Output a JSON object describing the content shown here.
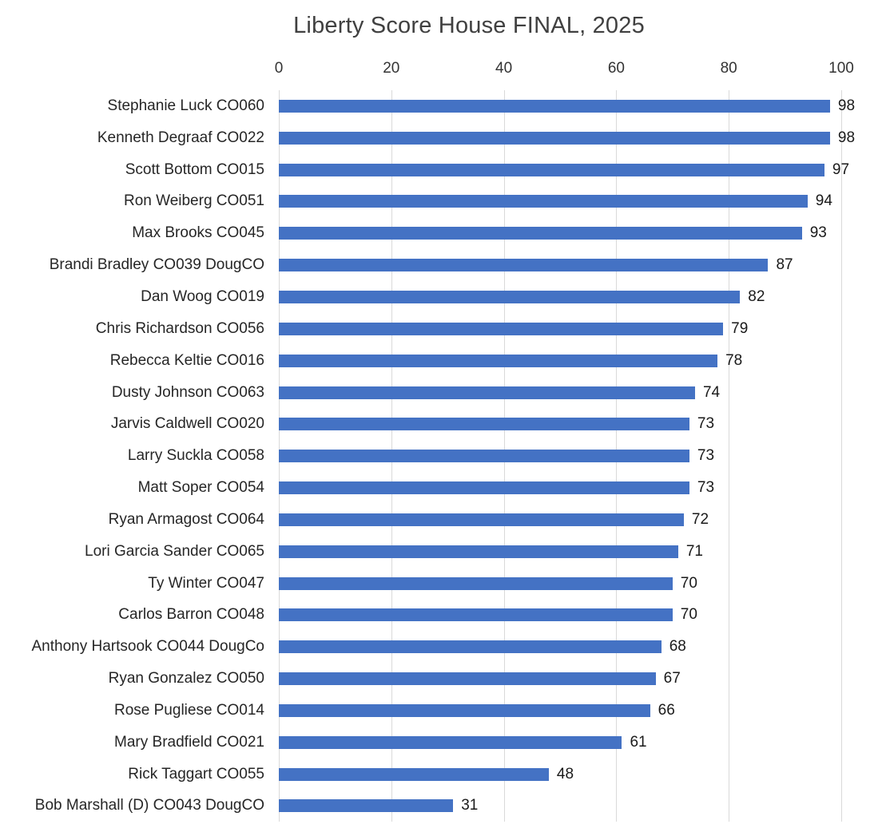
{
  "chart_data": {
    "type": "bar",
    "orientation": "horizontal",
    "title": "Liberty Score House FINAL, 2025",
    "categories": [
      "Stephanie Luck CO060",
      "Kenneth Degraaf CO022",
      "Scott Bottom CO015",
      "Ron Weiberg CO051",
      "Max Brooks CO045",
      "Brandi Bradley CO039 DougCO",
      "Dan Woog CO019",
      "Chris Richardson CO056",
      "Rebecca Keltie CO016",
      "Dusty Johnson CO063",
      "Jarvis Caldwell CO020",
      "Larry Suckla CO058",
      "Matt Soper CO054",
      "Ryan Armagost CO064",
      "Lori Garcia Sander CO065",
      "Ty Winter CO047",
      "Carlos Barron CO048",
      "Anthony Hartsook CO044 DougCo",
      "Ryan Gonzalez CO050",
      "Rose Pugliese CO014",
      "Mary Bradfield CO021",
      "Rick Taggart CO055",
      "Bob Marshall (D) CO043 DougCO"
    ],
    "values": [
      98,
      98,
      97,
      94,
      93,
      87,
      82,
      79,
      78,
      74,
      73,
      73,
      73,
      72,
      71,
      70,
      70,
      68,
      67,
      66,
      61,
      48,
      31
    ],
    "x_ticks": [
      0,
      20,
      40,
      60,
      80,
      100
    ],
    "xlim": [
      0,
      100
    ],
    "grid": true,
    "value_labels": true,
    "bar_color": "#4472C4",
    "gridline_color": "#D9D9D9",
    "title_color": "#404040",
    "label_color": "#262626"
  }
}
